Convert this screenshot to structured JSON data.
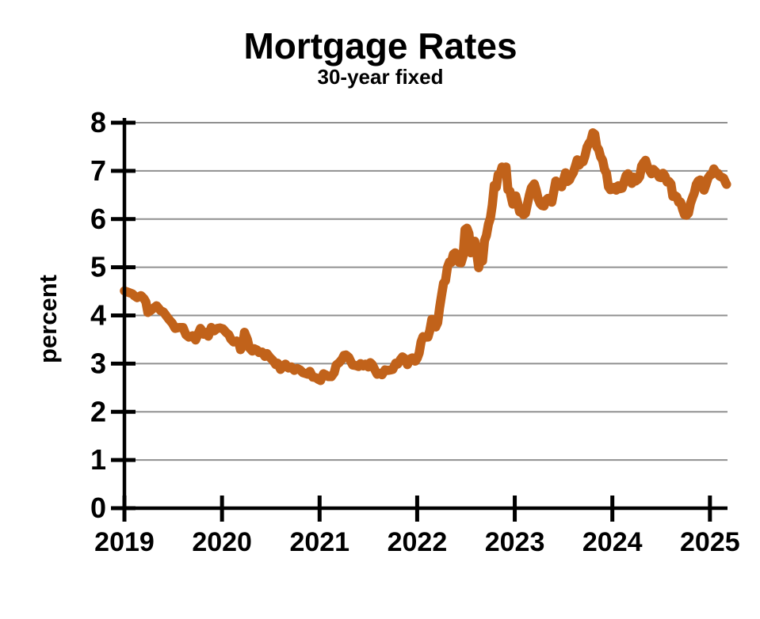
{
  "chart_data": {
    "type": "line",
    "title": "Mortgage Rates",
    "subtitle": "30-year fixed",
    "xlabel": "",
    "ylabel": "percent",
    "xlim": [
      2019,
      2025.18
    ],
    "ylim": [
      0,
      8
    ],
    "x_ticks": [
      "2019",
      "2020",
      "2021",
      "2022",
      "2023",
      "2024",
      "2025"
    ],
    "x_tick_values": [
      2019,
      2020,
      2021,
      2022,
      2023,
      2024,
      2025
    ],
    "y_ticks": [
      "0",
      "1",
      "2",
      "3",
      "4",
      "5",
      "6",
      "7",
      "8"
    ],
    "y_tick_values": [
      0,
      1,
      2,
      3,
      4,
      5,
      6,
      7,
      8
    ],
    "grid": "horizontal",
    "legend": "none",
    "colors": {
      "line": "#C1621A",
      "axis": "#000000",
      "grid": "#909090",
      "background": "#ffffff"
    },
    "series": [
      {
        "name": "30-year fixed mortgage rate (percent)",
        "points": [
          [
            2019.0,
            4.51
          ],
          [
            2019.04,
            4.48
          ],
          [
            2019.08,
            4.45
          ],
          [
            2019.1,
            4.41
          ],
          [
            2019.13,
            4.37
          ],
          [
            2019.17,
            4.41
          ],
          [
            2019.2,
            4.35
          ],
          [
            2019.22,
            4.28
          ],
          [
            2019.24,
            4.06
          ],
          [
            2019.28,
            4.12
          ],
          [
            2019.31,
            4.17
          ],
          [
            2019.33,
            4.2
          ],
          [
            2019.37,
            4.1
          ],
          [
            2019.4,
            4.07
          ],
          [
            2019.43,
            3.99
          ],
          [
            2019.46,
            3.91
          ],
          [
            2019.49,
            3.84
          ],
          [
            2019.52,
            3.73
          ],
          [
            2019.56,
            3.75
          ],
          [
            2019.6,
            3.75
          ],
          [
            2019.63,
            3.6
          ],
          [
            2019.66,
            3.55
          ],
          [
            2019.7,
            3.58
          ],
          [
            2019.73,
            3.49
          ],
          [
            2019.76,
            3.64
          ],
          [
            2019.78,
            3.73
          ],
          [
            2019.81,
            3.61
          ],
          [
            2019.84,
            3.65
          ],
          [
            2019.86,
            3.57
          ],
          [
            2019.89,
            3.75
          ],
          [
            2019.92,
            3.68
          ],
          [
            2019.95,
            3.73
          ],
          [
            2019.98,
            3.74
          ],
          [
            2020.01,
            3.72
          ],
          [
            2020.04,
            3.65
          ],
          [
            2020.07,
            3.6
          ],
          [
            2020.09,
            3.51
          ],
          [
            2020.12,
            3.45
          ],
          [
            2020.15,
            3.47
          ],
          [
            2020.17,
            3.45
          ],
          [
            2020.19,
            3.29
          ],
          [
            2020.21,
            3.36
          ],
          [
            2020.23,
            3.65
          ],
          [
            2020.26,
            3.5
          ],
          [
            2020.28,
            3.33
          ],
          [
            2020.31,
            3.26
          ],
          [
            2020.33,
            3.31
          ],
          [
            2020.36,
            3.28
          ],
          [
            2020.38,
            3.23
          ],
          [
            2020.41,
            3.24
          ],
          [
            2020.44,
            3.15
          ],
          [
            2020.46,
            3.21
          ],
          [
            2020.49,
            3.13
          ],
          [
            2020.52,
            3.07
          ],
          [
            2020.55,
            2.98
          ],
          [
            2020.57,
            3.01
          ],
          [
            2020.6,
            2.88
          ],
          [
            2020.63,
            2.96
          ],
          [
            2020.65,
            2.99
          ],
          [
            2020.68,
            2.91
          ],
          [
            2020.71,
            2.93
          ],
          [
            2020.74,
            2.86
          ],
          [
            2020.77,
            2.9
          ],
          [
            2020.8,
            2.87
          ],
          [
            2020.83,
            2.81
          ],
          [
            2020.85,
            2.8
          ],
          [
            2020.88,
            2.78
          ],
          [
            2020.9,
            2.84
          ],
          [
            2020.93,
            2.72
          ],
          [
            2020.96,
            2.71
          ],
          [
            2020.99,
            2.67
          ],
          [
            2021.01,
            2.65
          ],
          [
            2021.04,
            2.79
          ],
          [
            2021.06,
            2.77
          ],
          [
            2021.09,
            2.73
          ],
          [
            2021.12,
            2.73
          ],
          [
            2021.15,
            2.81
          ],
          [
            2021.17,
            2.97
          ],
          [
            2021.2,
            3.02
          ],
          [
            2021.23,
            3.09
          ],
          [
            2021.25,
            3.17
          ],
          [
            2021.27,
            3.18
          ],
          [
            2021.3,
            3.13
          ],
          [
            2021.32,
            3.04
          ],
          [
            2021.34,
            2.97
          ],
          [
            2021.37,
            2.96
          ],
          [
            2021.4,
            2.94
          ],
          [
            2021.42,
            3.0
          ],
          [
            2021.45,
            2.95
          ],
          [
            2021.47,
            2.99
          ],
          [
            2021.5,
            2.93
          ],
          [
            2021.52,
            3.02
          ],
          [
            2021.54,
            2.98
          ],
          [
            2021.56,
            2.9
          ],
          [
            2021.59,
            2.78
          ],
          [
            2021.62,
            2.8
          ],
          [
            2021.64,
            2.77
          ],
          [
            2021.67,
            2.87
          ],
          [
            2021.7,
            2.86
          ],
          [
            2021.73,
            2.87
          ],
          [
            2021.75,
            2.88
          ],
          [
            2021.78,
            3.01
          ],
          [
            2021.8,
            2.99
          ],
          [
            2021.83,
            3.09
          ],
          [
            2021.85,
            3.14
          ],
          [
            2021.88,
            3.09
          ],
          [
            2021.9,
            2.98
          ],
          [
            2021.93,
            3.1
          ],
          [
            2021.95,
            3.12
          ],
          [
            2021.98,
            3.05
          ],
          [
            2022.0,
            3.11
          ],
          [
            2022.02,
            3.22
          ],
          [
            2022.04,
            3.45
          ],
          [
            2022.06,
            3.56
          ],
          [
            2022.08,
            3.55
          ],
          [
            2022.11,
            3.55
          ],
          [
            2022.13,
            3.69
          ],
          [
            2022.15,
            3.92
          ],
          [
            2022.17,
            3.89
          ],
          [
            2022.19,
            3.76
          ],
          [
            2022.21,
            3.85
          ],
          [
            2022.23,
            4.16
          ],
          [
            2022.25,
            4.42
          ],
          [
            2022.27,
            4.67
          ],
          [
            2022.29,
            4.72
          ],
          [
            2022.31,
            5.0
          ],
          [
            2022.33,
            5.11
          ],
          [
            2022.35,
            5.1
          ],
          [
            2022.37,
            5.27
          ],
          [
            2022.39,
            5.3
          ],
          [
            2022.41,
            5.25
          ],
          [
            2022.43,
            5.1
          ],
          [
            2022.45,
            5.09
          ],
          [
            2022.47,
            5.23
          ],
          [
            2022.49,
            5.78
          ],
          [
            2022.51,
            5.81
          ],
          [
            2022.53,
            5.7
          ],
          [
            2022.55,
            5.3
          ],
          [
            2022.57,
            5.51
          ],
          [
            2022.59,
            5.54
          ],
          [
            2022.61,
            5.3
          ],
          [
            2022.63,
            4.99
          ],
          [
            2022.65,
            5.22
          ],
          [
            2022.67,
            5.13
          ],
          [
            2022.69,
            5.55
          ],
          [
            2022.71,
            5.66
          ],
          [
            2022.73,
            5.89
          ],
          [
            2022.75,
            6.02
          ],
          [
            2022.77,
            6.29
          ],
          [
            2022.79,
            6.7
          ],
          [
            2022.81,
            6.66
          ],
          [
            2022.83,
            6.92
          ],
          [
            2022.85,
            6.94
          ],
          [
            2022.87,
            7.08
          ],
          [
            2022.89,
            6.95
          ],
          [
            2022.91,
            7.08
          ],
          [
            2022.93,
            6.61
          ],
          [
            2022.95,
            6.58
          ],
          [
            2022.96,
            6.49
          ],
          [
            2022.98,
            6.31
          ],
          [
            2023.0,
            6.42
          ],
          [
            2023.01,
            6.48
          ],
          [
            2023.03,
            6.33
          ],
          [
            2023.05,
            6.15
          ],
          [
            2023.07,
            6.13
          ],
          [
            2023.09,
            6.09
          ],
          [
            2023.11,
            6.12
          ],
          [
            2023.13,
            6.32
          ],
          [
            2023.15,
            6.5
          ],
          [
            2023.17,
            6.65
          ],
          [
            2023.2,
            6.73
          ],
          [
            2023.22,
            6.6
          ],
          [
            2023.24,
            6.42
          ],
          [
            2023.26,
            6.32
          ],
          [
            2023.28,
            6.28
          ],
          [
            2023.3,
            6.27
          ],
          [
            2023.32,
            6.39
          ],
          [
            2023.34,
            6.43
          ],
          [
            2023.36,
            6.39
          ],
          [
            2023.38,
            6.35
          ],
          [
            2023.4,
            6.57
          ],
          [
            2023.42,
            6.79
          ],
          [
            2023.44,
            6.71
          ],
          [
            2023.46,
            6.69
          ],
          [
            2023.48,
            6.67
          ],
          [
            2023.5,
            6.81
          ],
          [
            2023.52,
            6.96
          ],
          [
            2023.54,
            6.78
          ],
          [
            2023.56,
            6.81
          ],
          [
            2023.58,
            6.9
          ],
          [
            2023.6,
            6.96
          ],
          [
            2023.62,
            7.09
          ],
          [
            2023.64,
            7.23
          ],
          [
            2023.66,
            7.12
          ],
          [
            2023.68,
            7.18
          ],
          [
            2023.7,
            7.19
          ],
          [
            2023.72,
            7.31
          ],
          [
            2023.74,
            7.49
          ],
          [
            2023.76,
            7.57
          ],
          [
            2023.78,
            7.63
          ],
          [
            2023.8,
            7.79
          ],
          [
            2023.82,
            7.76
          ],
          [
            2023.84,
            7.5
          ],
          [
            2023.86,
            7.44
          ],
          [
            2023.88,
            7.29
          ],
          [
            2023.9,
            7.22
          ],
          [
            2023.92,
            7.03
          ],
          [
            2023.94,
            6.95
          ],
          [
            2023.96,
            6.67
          ],
          [
            2023.98,
            6.61
          ],
          [
            2024.0,
            6.62
          ],
          [
            2024.02,
            6.66
          ],
          [
            2024.04,
            6.6
          ],
          [
            2024.06,
            6.69
          ],
          [
            2024.08,
            6.63
          ],
          [
            2024.1,
            6.64
          ],
          [
            2024.12,
            6.77
          ],
          [
            2024.14,
            6.9
          ],
          [
            2024.16,
            6.94
          ],
          [
            2024.18,
            6.88
          ],
          [
            2024.2,
            6.74
          ],
          [
            2024.22,
            6.87
          ],
          [
            2024.24,
            6.79
          ],
          [
            2024.26,
            6.82
          ],
          [
            2024.28,
            6.88
          ],
          [
            2024.3,
            7.1
          ],
          [
            2024.32,
            7.17
          ],
          [
            2024.34,
            7.22
          ],
          [
            2024.36,
            7.09
          ],
          [
            2024.38,
            7.02
          ],
          [
            2024.4,
            6.94
          ],
          [
            2024.42,
            7.03
          ],
          [
            2024.44,
            6.99
          ],
          [
            2024.46,
            6.95
          ],
          [
            2024.48,
            6.87
          ],
          [
            2024.5,
            6.86
          ],
          [
            2024.52,
            6.95
          ],
          [
            2024.54,
            6.89
          ],
          [
            2024.56,
            6.77
          ],
          [
            2024.58,
            6.78
          ],
          [
            2024.6,
            6.73
          ],
          [
            2024.62,
            6.47
          ],
          [
            2024.64,
            6.49
          ],
          [
            2024.66,
            6.46
          ],
          [
            2024.68,
            6.35
          ],
          [
            2024.7,
            6.35
          ],
          [
            2024.72,
            6.2
          ],
          [
            2024.74,
            6.09
          ],
          [
            2024.76,
            6.08
          ],
          [
            2024.78,
            6.12
          ],
          [
            2024.8,
            6.32
          ],
          [
            2024.82,
            6.44
          ],
          [
            2024.84,
            6.54
          ],
          [
            2024.86,
            6.72
          ],
          [
            2024.88,
            6.79
          ],
          [
            2024.9,
            6.81
          ],
          [
            2024.92,
            6.69
          ],
          [
            2024.94,
            6.6
          ],
          [
            2024.96,
            6.72
          ],
          [
            2024.98,
            6.85
          ],
          [
            2025.0,
            6.91
          ],
          [
            2025.02,
            6.93
          ],
          [
            2025.04,
            7.04
          ],
          [
            2025.06,
            6.96
          ],
          [
            2025.08,
            6.95
          ],
          [
            2025.1,
            6.89
          ],
          [
            2025.12,
            6.87
          ],
          [
            2025.14,
            6.85
          ],
          [
            2025.16,
            6.76
          ],
          [
            2025.17,
            6.72
          ]
        ]
      }
    ]
  }
}
